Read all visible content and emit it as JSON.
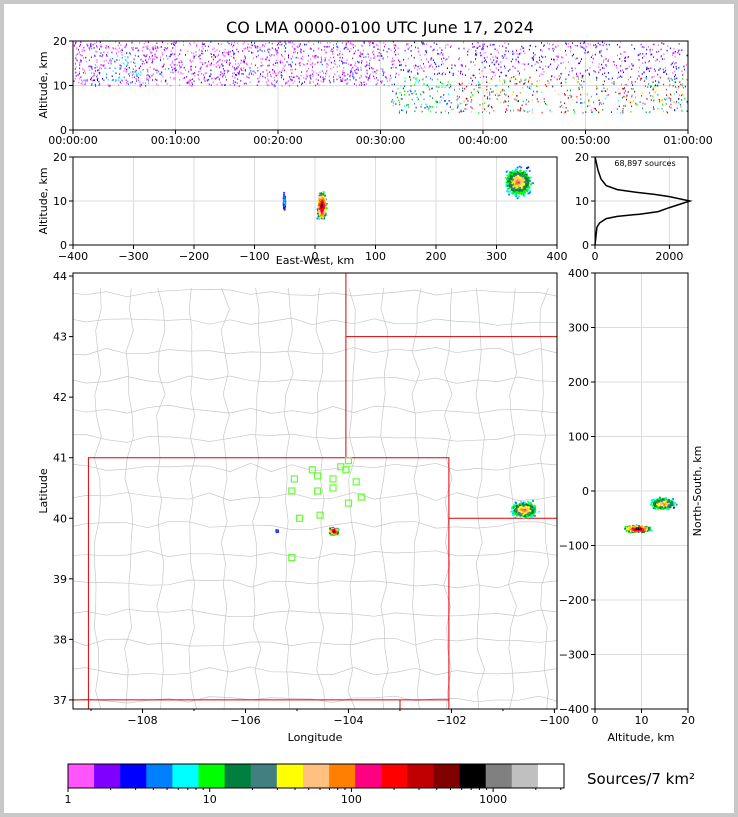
{
  "title": "CO LMA 0000-0100 UTC June 17, 2024",
  "panels": {
    "time_height": {
      "ylabel": "Altitude, km",
      "yticks": [
        "0",
        "10",
        "20"
      ],
      "xticks": [
        "00:00:00",
        "00:10:00",
        "00:20:00",
        "00:30:00",
        "00:40:00",
        "00:50:00",
        "01:00:00"
      ]
    },
    "ew_height": {
      "ylabel": "Altitude, km",
      "xlabel": "East-West, km",
      "yticks": [
        "0",
        "10",
        "20"
      ],
      "xticks": [
        "−400",
        "−300",
        "−200",
        "−100",
        "0",
        "100",
        "200",
        "300",
        "400"
      ]
    },
    "histogram": {
      "annotation": "68,897 sources",
      "yticks": [
        "0",
        "10",
        "20"
      ],
      "xticks": [
        "0",
        "2000"
      ]
    },
    "plan_view": {
      "ylabel": "Latitude",
      "xlabel": "Longitude",
      "yticks": [
        "37",
        "38",
        "39",
        "40",
        "41",
        "42",
        "43",
        "44"
      ],
      "xticks": [
        "−108",
        "−106",
        "−104",
        "−102",
        "−100"
      ]
    },
    "ns_height": {
      "ylabel": "North-South, km",
      "xlabel": "Altitude, km",
      "yticks": [
        "400",
        "300",
        "200",
        "100",
        "0",
        "−100",
        "−200",
        "−300",
        "−400"
      ],
      "xticks": [
        "0",
        "10",
        "20"
      ]
    }
  },
  "colorbar": {
    "label": "Sources/7 km²",
    "ticks": [
      "1",
      "10",
      "100",
      "1000"
    ],
    "colors": [
      "#ff55ff",
      "#8000ff",
      "#0000ff",
      "#0080ff",
      "#00ffff",
      "#00ff00",
      "#008040",
      "#408080",
      "#ffff00",
      "#ffc080",
      "#ff8000",
      "#ff0080",
      "#ff0000",
      "#c00000",
      "#800000",
      "#000000",
      "#808080",
      "#c0c0c0",
      "#ffffff"
    ]
  },
  "chart_data": [
    {
      "type": "scatter",
      "title": "CO LMA 0000-0100 UTC June 17, 2024",
      "xlabel": "",
      "ylabel": "Altitude, km",
      "xlim": [
        "00:00:00",
        "01:00:00"
      ],
      "ylim": [
        0,
        20
      ],
      "grid": true,
      "series": [
        {
          "x_start": "00:00:00",
          "x_end": "00:31:00",
          "alt_min": 9,
          "alt_max": 20
        },
        {
          "x_start": "00:31:00",
          "x_end": "01:00:00",
          "alt_min": 3,
          "alt_max": 20
        }
      ]
    },
    {
      "type": "scatter",
      "xlabel": "East-West, km",
      "ylabel": "Altitude, km",
      "xlim": [
        -400,
        400
      ],
      "ylim": [
        0,
        20
      ],
      "grid": true,
      "clusters": [
        {
          "ew_center": -52,
          "alt_center": 10
        },
        {
          "ew_center": 10,
          "alt_center": 9
        },
        {
          "ew_center": 335,
          "alt_center": 14
        }
      ]
    },
    {
      "type": "line",
      "annotation": "68,897 sources",
      "xlim": [
        0,
        2500
      ],
      "ylim": [
        0,
        20
      ],
      "x": [
        0,
        50,
        120,
        300,
        600,
        1200,
        1700,
        2000,
        2550,
        2000,
        1600,
        1100,
        600,
        300,
        160,
        80,
        30,
        0
      ],
      "y": [
        0,
        4,
        5,
        6,
        6.5,
        7,
        7.6,
        8.5,
        10,
        11,
        11.5,
        12,
        12.6,
        13.5,
        15,
        17,
        19,
        20
      ]
    },
    {
      "type": "scatter",
      "xlabel": "Longitude",
      "ylabel": "Latitude",
      "xlim": [
        -109.35,
        -99.95
      ],
      "ylim": [
        36.85,
        44.05
      ],
      "grid": true,
      "clusters": [
        {
          "lon": -104.3,
          "lat": 39.8
        },
        {
          "lon": -105.4,
          "lat": 39.8
        },
        {
          "lon": -100.6,
          "lat": 40.2
        }
      ],
      "stations": [
        {
          "lon": -104.0,
          "lat": 40.95
        },
        {
          "lon": -104.15,
          "lat": 40.85
        },
        {
          "lon": -104.05,
          "lat": 40.8
        },
        {
          "lon": -104.7,
          "lat": 40.8
        },
        {
          "lon": -104.6,
          "lat": 40.7
        },
        {
          "lon": -105.05,
          "lat": 40.65
        },
        {
          "lon": -104.3,
          "lat": 40.65
        },
        {
          "lon": -104.6,
          "lat": 40.45
        },
        {
          "lon": -105.1,
          "lat": 40.45
        },
        {
          "lon": -103.85,
          "lat": 40.6
        },
        {
          "lon": -104.3,
          "lat": 40.5
        },
        {
          "lon": -103.75,
          "lat": 40.35
        },
        {
          "lon": -104.0,
          "lat": 40.25
        },
        {
          "lon": -104.55,
          "lat": 40.05
        },
        {
          "lon": -104.95,
          "lat": 40.0
        },
        {
          "lon": -105.1,
          "lat": 39.35
        }
      ]
    },
    {
      "type": "scatter",
      "xlabel": "Altitude, km",
      "ylabel": "North-South, km",
      "xlim": [
        0,
        20
      ],
      "ylim": [
        -400,
        400
      ],
      "grid": true,
      "clusters": [
        {
          "alt_center": 9,
          "ns_center": -68
        },
        {
          "alt_center": 14,
          "ns_center": -20
        }
      ]
    }
  ]
}
